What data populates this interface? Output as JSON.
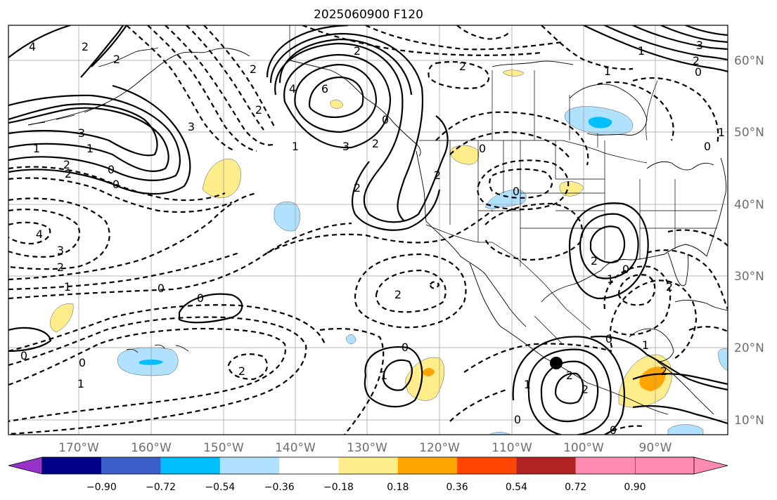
{
  "title": "2025060900 F120",
  "lon_ticks": [
    "170°W",
    "160°W",
    "150°W",
    "140°W",
    "130°W",
    "120°W",
    "110°W",
    "100°W",
    "90°W"
  ],
  "lat_ticks": [
    "60°N",
    "50°N",
    "40°N",
    "30°N",
    "20°N",
    "10°N"
  ],
  "colorbar": {
    "colors": [
      "#9932cc",
      "#00008b",
      "#3a5fcd",
      "#00bfff",
      "#b0e2ff",
      "#ffffff",
      "#ffec8b",
      "#ffa500",
      "#ff4500",
      "#b22222",
      "#ff8cb0"
    ],
    "tick_labels": [
      "−0.90",
      "−0.72",
      "−0.54",
      "−0.36",
      "−0.18",
      "0.18",
      "0.36",
      "0.54",
      "0.72",
      "0.90"
    ]
  },
  "contour_labels": [
    {
      "text": "4"
    },
    {
      "text": "2"
    },
    {
      "text": "1"
    },
    {
      "text": "3"
    },
    {
      "text": "1"
    },
    {
      "text": "2"
    },
    {
      "text": "0"
    },
    {
      "text": "2"
    },
    {
      "text": "0"
    },
    {
      "text": "4"
    },
    {
      "text": "3"
    },
    {
      "text": "2"
    },
    {
      "text": "1"
    },
    {
      "text": "0"
    },
    {
      "text": "3"
    },
    {
      "text": "2"
    },
    {
      "text": "2"
    },
    {
      "text": "6"
    },
    {
      "text": "4"
    },
    {
      "text": "3"
    },
    {
      "text": "2"
    },
    {
      "text": "1"
    },
    {
      "text": "2"
    },
    {
      "text": "0"
    },
    {
      "text": "2"
    },
    {
      "text": "2"
    },
    {
      "text": "2"
    },
    {
      "text": "1"
    },
    {
      "text": "0"
    },
    {
      "text": "3"
    },
    {
      "text": "2"
    },
    {
      "text": "1"
    },
    {
      "text": "0"
    },
    {
      "text": "0"
    },
    {
      "text": "1"
    },
    {
      "text": "0"
    },
    {
      "text": "0"
    },
    {
      "text": "1"
    },
    {
      "text": "2"
    },
    {
      "text": "2"
    },
    {
      "text": "0"
    },
    {
      "text": "1"
    },
    {
      "text": "2"
    },
    {
      "text": "1"
    },
    {
      "text": "0"
    },
    {
      "text": "0"
    },
    {
      "text": "2"
    },
    {
      "text": "2"
    },
    {
      "text": "0"
    },
    {
      "text": "0"
    },
    {
      "text": "1"
    },
    {
      "text": "2"
    },
    {
      "text": "2"
    },
    {
      "text": "1"
    },
    {
      "text": "0"
    },
    {
      "text": "0"
    },
    {
      "text": "2"
    }
  ],
  "markers": [
    {
      "name": "point-marker",
      "color": "#000000"
    }
  ]
}
